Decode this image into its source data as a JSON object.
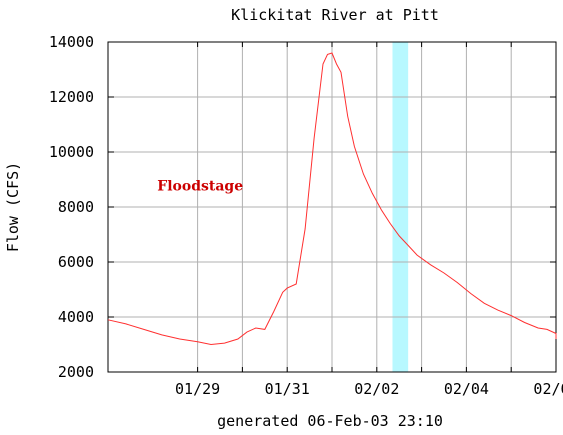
{
  "chart_data": {
    "type": "line",
    "title": "Klickitat River at Pitt",
    "ylabel": "Flow (CFS)",
    "xlabel": "generated 06-Feb-03 23:10",
    "ylim": [
      2000,
      14000
    ],
    "xlim": [
      -1.0,
      9.0
    ],
    "y_ticks": [
      2000,
      4000,
      6000,
      8000,
      10000,
      12000,
      14000
    ],
    "x_ticks": [
      {
        "x": 1,
        "label": "01/29"
      },
      {
        "x": 3,
        "label": "01/31"
      },
      {
        "x": 5,
        "label": "02/02"
      },
      {
        "x": 7,
        "label": "02/04"
      },
      {
        "x": 9,
        "label": "02/06"
      }
    ],
    "x_grid": [
      1,
      2,
      3,
      4,
      5,
      6,
      7,
      8,
      9
    ],
    "grid": true,
    "annotation": {
      "text": "Floodstage",
      "color": "#cc0000",
      "x": 0.1,
      "y": 8600
    },
    "highlight_band": {
      "x_start": 5.35,
      "x_end": 5.7,
      "color": "#b8f8ff"
    },
    "series": [
      {
        "color": "#ff3030",
        "x": [
          -1.0,
          -0.6,
          -0.2,
          0.2,
          0.6,
          1.0,
          1.3,
          1.6,
          1.9,
          2.1,
          2.3,
          2.5,
          2.7,
          2.9,
          3.0,
          3.2,
          3.4,
          3.6,
          3.8,
          3.9,
          4.0,
          4.1,
          4.2,
          4.35,
          4.5,
          4.7,
          4.9,
          5.1,
          5.3,
          5.5,
          5.7,
          5.9,
          6.2,
          6.5,
          6.8,
          7.1,
          7.4,
          7.7,
          8.0,
          8.3,
          8.6,
          8.8,
          9.0,
          9.2
        ],
        "y": [
          3900,
          3750,
          3550,
          3350,
          3200,
          3100,
          3000,
          3050,
          3200,
          3450,
          3600,
          3550,
          4200,
          4900,
          5050,
          5200,
          7200,
          10500,
          13200,
          13550,
          13600,
          13200,
          12900,
          11300,
          10200,
          9200,
          8500,
          7900,
          7400,
          6950,
          6600,
          6250,
          5900,
          5600,
          5250,
          4850,
          4500,
          4250,
          4050,
          3800,
          3600,
          3550,
          3400,
          3200
        ]
      }
    ]
  }
}
